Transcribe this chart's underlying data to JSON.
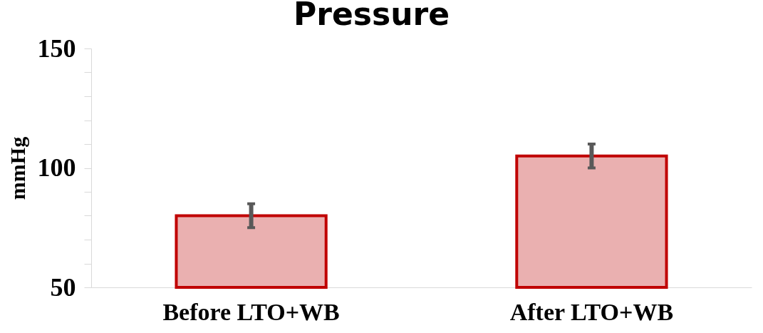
{
  "chart_data": {
    "type": "bar",
    "title": "Pressure",
    "ylabel": "mmHg",
    "categories": [
      "Before LTO+WB",
      "After LTO+WB"
    ],
    "values": [
      80,
      105
    ],
    "errors": [
      5,
      [
        100,
        110
      ]
    ],
    "color": "#eab0b0",
    "ylim": [
      50,
      150
    ],
    "yticks": [
      50,
      {
        "value": 60,
        "label": null
      },
      {
        "value": 70,
        "label": null
      },
      {
        "value": 80,
        "label": null
      },
      {
        "value": 90,
        "label": null
      },
      100,
      {
        "value": 110,
        "label": null
      },
      {
        "value": 120,
        "label": null
      },
      {
        "value": 130,
        "label": null
      },
      {
        "value": 140,
        "label": null
      },
      150
    ],
    "grid": false,
    "legend": false
  }
}
